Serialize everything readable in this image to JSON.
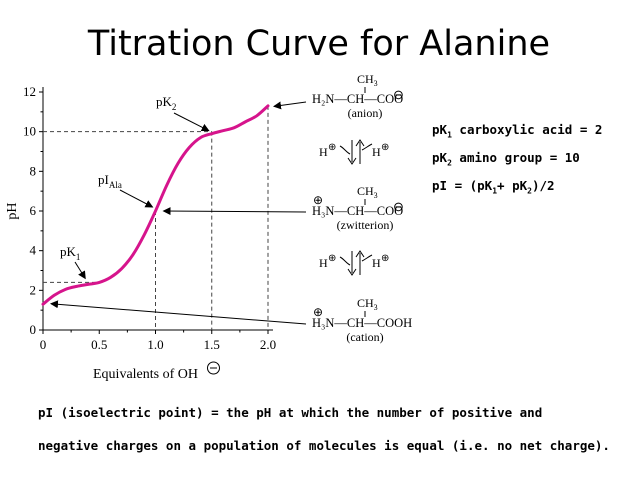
{
  "title": "Titration Curve for Alanine",
  "chart_data": {
    "type": "line",
    "xlabel": "Equivalents of OH",
    "ylabel": "pH",
    "xlim": [
      0,
      2.0
    ],
    "ylim": [
      0,
      12
    ],
    "x_ticks": [
      "0",
      "0.5",
      "1.0",
      "1.5",
      "2.0"
    ],
    "y_ticks": [
      "0",
      "2",
      "4",
      "6",
      "8",
      "10",
      "12"
    ],
    "grid": false,
    "series": [
      {
        "color": "#d6148c",
        "x": [
          0.0,
          0.1,
          0.2,
          0.3,
          0.4,
          0.5,
          0.6,
          0.7,
          0.8,
          0.9,
          1.0,
          1.1,
          1.2,
          1.3,
          1.4,
          1.5,
          1.6,
          1.7,
          1.8,
          1.9,
          2.0
        ],
        "y": [
          1.3,
          1.75,
          2.05,
          2.2,
          2.3,
          2.4,
          2.65,
          3.1,
          3.8,
          4.8,
          6.0,
          7.3,
          8.4,
          9.2,
          9.7,
          9.9,
          10.05,
          10.2,
          10.5,
          10.8,
          11.3
        ]
      }
    ],
    "annotations": {
      "pK1": {
        "label_main": "pK",
        "label_sub": "1",
        "x": 0.5,
        "y": 2.4
      },
      "pK2": {
        "label_main": "pK",
        "label_sub": "2",
        "x": 1.5,
        "y": 9.9
      },
      "pI": {
        "label_main": "pI",
        "label_sub": "Ala",
        "x": 1.0,
        "y": 6.0
      }
    }
  },
  "structures": {
    "anion": {
      "ch3": "CH",
      "ch3_sub": "3",
      "chain": "H₂N—CH—COO",
      "charge": "⊖",
      "caption": "(anion)"
    },
    "zwitterion": {
      "ch3": "CH",
      "ch3_sub": "3",
      "chain": "H₃N—CH—COO",
      "plus": "⊕",
      "charge": "⊖",
      "caption": "(zwitterion)"
    },
    "cation": {
      "ch3": "CH",
      "ch3_sub": "3",
      "chain": "H₃N—CH—COOH",
      "plus": "⊕",
      "caption": "(cation)"
    },
    "equilibrium_h": "H",
    "equilibrium_plus": "⊕"
  },
  "notes": {
    "pk1_text": "carboxylic acid = 2",
    "pk2_text": "amino group = 10",
    "pi_text": "pI = (pK",
    "pi_mid": "+ pK",
    "pi_end": ")/2",
    "pk_prefix": "pK",
    "sub1": "1",
    "sub2": "2"
  },
  "definition": {
    "line1": "pI (isoelectric point) = the pH at which the number of positive and",
    "line2": "negative charges on a population of molecules is equal (i.e. no net charge)."
  }
}
